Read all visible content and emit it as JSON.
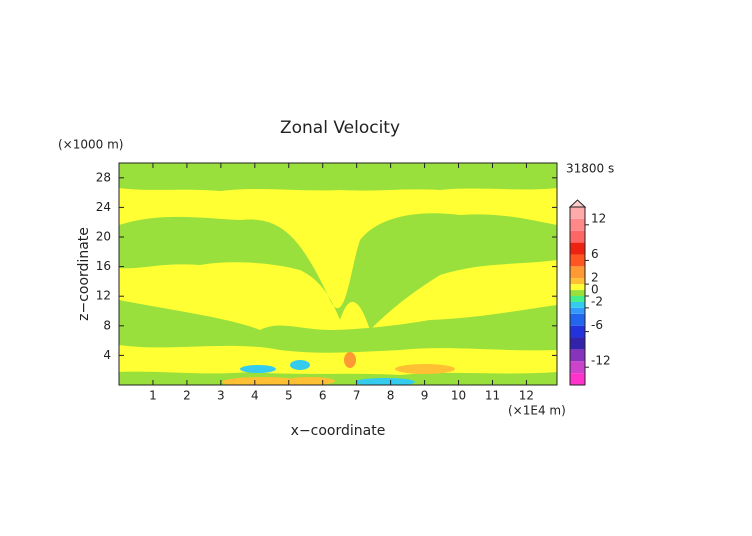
{
  "chart_data": {
    "type": "contour",
    "title": "Zonal Velocity",
    "x_label": "x−coordinate",
    "y_label": "z−coordinate",
    "x_unit": "(×1E4 m)",
    "y_unit": "(×1000 m)",
    "time_label": "31800 s",
    "xlim": [
      0,
      12.9
    ],
    "ylim": [
      0,
      30
    ],
    "xticks": [
      1,
      2,
      3,
      4,
      5,
      6,
      7,
      8,
      9,
      10,
      11,
      12
    ],
    "yticks": [
      4,
      8,
      12,
      16,
      20,
      24,
      28
    ],
    "colorbar": {
      "lim": [
        -15,
        15
      ],
      "ticks": [
        12,
        6,
        2,
        0,
        -2,
        -6,
        -12
      ],
      "bounds": [
        -15,
        -13,
        -11,
        -9,
        -7,
        -5,
        -3,
        -2,
        -1,
        0,
        1,
        2,
        3,
        5,
        7,
        9,
        11,
        13,
        15
      ],
      "colors": [
        "#ff33cc",
        "#cc44cc",
        "#8833bb",
        "#3322aa",
        "#2233dd",
        "#2266ee",
        "#3399ff",
        "#33ccee",
        "#44ee88",
        "#99e03c",
        "#ffff33",
        "#ffc033",
        "#ff9933",
        "#ff5522",
        "#ee2211",
        "#ff6666",
        "#ff8888",
        "#ffaaaa"
      ]
    }
  }
}
